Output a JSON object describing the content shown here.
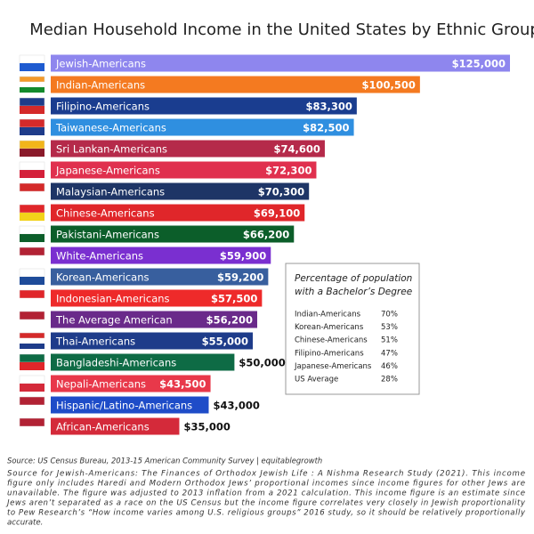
{
  "chart_data": {
    "type": "bar",
    "orientation": "horizontal",
    "title": "Median Household Income in the United States  by Ethnic Group",
    "categories": [
      "Jewish-Americans",
      "Indian-Americans",
      "Filipino-Americans",
      "Taiwanese-Americans",
      "Sri Lankan-Americans",
      "Japanese-Americans",
      "Malaysian-Americans",
      "Chinese-Americans",
      "Pakistani-Americans",
      "White-Americans",
      "Korean-Americans",
      "Indonesian-Americans",
      "The Average American",
      "Thai-Americans",
      "Bangladeshi-Americans",
      "Nepali-Americans",
      "Hispanic/Latino-Americans",
      "African-Americans"
    ],
    "values": [
      125000,
      100500,
      83300,
      82500,
      74600,
      72300,
      70300,
      69100,
      66200,
      59900,
      59200,
      57500,
      56200,
      55000,
      50000,
      43500,
      43000,
      35000
    ],
    "value_labels": [
      "$125,000",
      "$100,500",
      "$83,300",
      "$82,500",
      "$74,600",
      "$72,300",
      "$70,300",
      "$69,100",
      "$66,200",
      "$59,900",
      "$59,200",
      "$57,500",
      "$56,200",
      "$55,000",
      "$50,000",
      "$43,500",
      "$43,000",
      "$35,000"
    ],
    "colors": [
      "#8e86ee",
      "#f47a20",
      "#1a3d8f",
      "#2f8fe0",
      "#b52a4a",
      "#e0304e",
      "#1e3566",
      "#e0262a",
      "#0c5e2a",
      "#7a2fd0",
      "#385f9e",
      "#ee2a2a",
      "#6a2a8a",
      "#1e3c8a",
      "#0e6b45",
      "#e8384a",
      "#1e4cc8",
      "#d42a3a"
    ],
    "inset_table": {
      "title_lines": [
        "Percentage of population",
        "with a Bachelor’s Degree"
      ],
      "rows": [
        [
          "Indian-Americans",
          "70%"
        ],
        [
          "Korean-Americans",
          "53%"
        ],
        [
          "Chinese-Americans",
          "51%"
        ],
        [
          "Filipino-Americans",
          "47%"
        ],
        [
          "Japanese-Americans",
          "46%"
        ],
        [
          "US Average",
          "28%"
        ]
      ]
    },
    "source": "Source: US Census Bureau, 2013-15 American Community Survey | equitablegrowth",
    "notes": [
      "Source for Jewish-Americans: The Finances of Orthodox Jewish Life : A Nishma Research Study (2021). This income",
      "figure only includes Haredi and Modern Orthodox Jews’ proportional incomes since income figures for other Jews are",
      "unavailable. The figure was adjusted to 2013 inflation from a 2021 calculation. This income figure is an estimate since",
      "Jews aren’t separated as a race on the US Census but the income figure correlates very closely in Jewish proportionality",
      "to Pew Research’s “How income varies among U.S. religious groups” 2016 study, so it should be relatively proportionally",
      "accurate."
    ]
  }
}
